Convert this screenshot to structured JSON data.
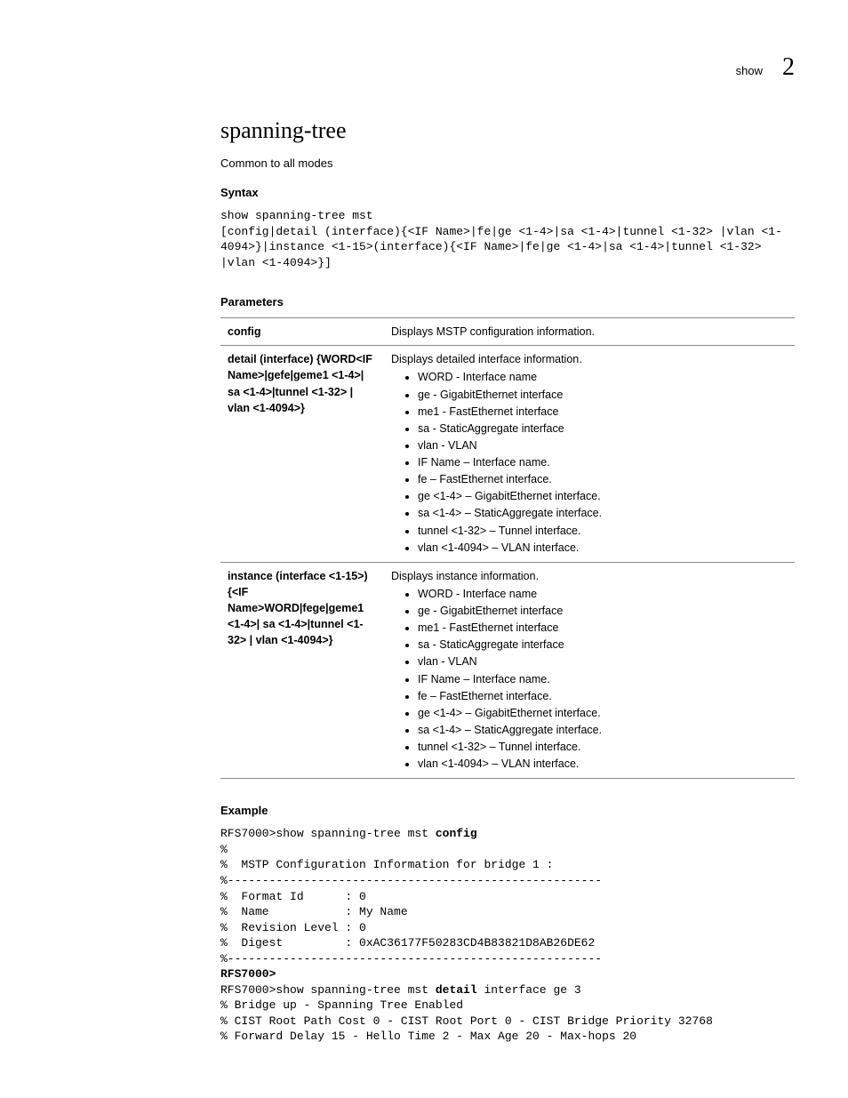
{
  "header": {
    "label": "show",
    "chapter": "2"
  },
  "title": "spanning-tree",
  "subtitle": "Common to all modes",
  "syntax": {
    "heading": "Syntax",
    "code": "show spanning-tree mst\n[config|detail (interface){<IF Name>|fe|ge <1-4>|sa <1-4>|tunnel <1-32> |vlan <1-4094>}|instance <1-15>(interface){<IF Name>|fe|ge <1-4>|sa <1-4>|tunnel <1-32> |vlan <1-4094>}]"
  },
  "parameters": {
    "heading": "Parameters",
    "rows": [
      {
        "name": "config",
        "intro": "Displays MSTP configuration information.",
        "bullets": []
      },
      {
        "name": "detail (interface) {WORD<IF Name>|gefe|geme1 <1-4>| sa <1-4>|tunnel <1-32> | vlan <1-4094>}",
        "intro": "Displays detailed interface information.",
        "bullets": [
          "WORD - Interface name",
          "ge - GigabitEthernet interface",
          "me1 - FastEthernet interface",
          "sa - StaticAggregate interface",
          "vlan - VLAN",
          "IF Name – Interface name.",
          "fe – FastEthernet interface.",
          "ge <1-4> – GigabitEthernet interface.",
          "sa <1-4> – StaticAggregate interface.",
          "tunnel <1-32> – Tunnel interface.",
          "vlan <1-4094> – VLAN interface."
        ]
      },
      {
        "name": "instance (interface <1-15>) {<IF Name>WORD|fege|geme1 <1-4>| sa <1-4>|tunnel <1-32> | vlan <1-4094>}",
        "intro": "Displays instance information.",
        "bullets": [
          "WORD - Interface name",
          "ge - GigabitEthernet interface",
          "me1 - FastEthernet interface",
          "sa - StaticAggregate interface",
          "vlan - VLAN",
          "IF Name – Interface name.",
          "fe – FastEthernet interface.",
          "ge <1-4> – GigabitEthernet interface.",
          "sa <1-4> – StaticAggregate interface.",
          "tunnel <1-32> – Tunnel interface.",
          "vlan <1-4094> – VLAN interface."
        ]
      }
    ]
  },
  "example": {
    "heading": "Example",
    "line1_prefix": "RFS7000>show spanning-tree mst ",
    "line1_bold": "config",
    "block1": "%\n%  MSTP Configuration Information for bridge 1 :\n%------------------------------------------------------\n%  Format Id      : 0\n%  Name           : My Name\n%  Revision Level : 0\n%  Digest         : 0xAC36177F50283CD4B83821D8AB26DE62\n%------------------------------------------------------",
    "line2_bold": "RFS7000>",
    "line3_prefix": "RFS7000>show spanning-tree mst ",
    "line3_bold": "detail",
    "line3_suffix": " interface ge 3",
    "block2": "% Bridge up - Spanning Tree Enabled\n% CIST Root Path Cost 0 - CIST Root Port 0 - CIST Bridge Priority 32768\n% Forward Delay 15 - Hello Time 2 - Max Age 20 - Max-hops 20"
  }
}
